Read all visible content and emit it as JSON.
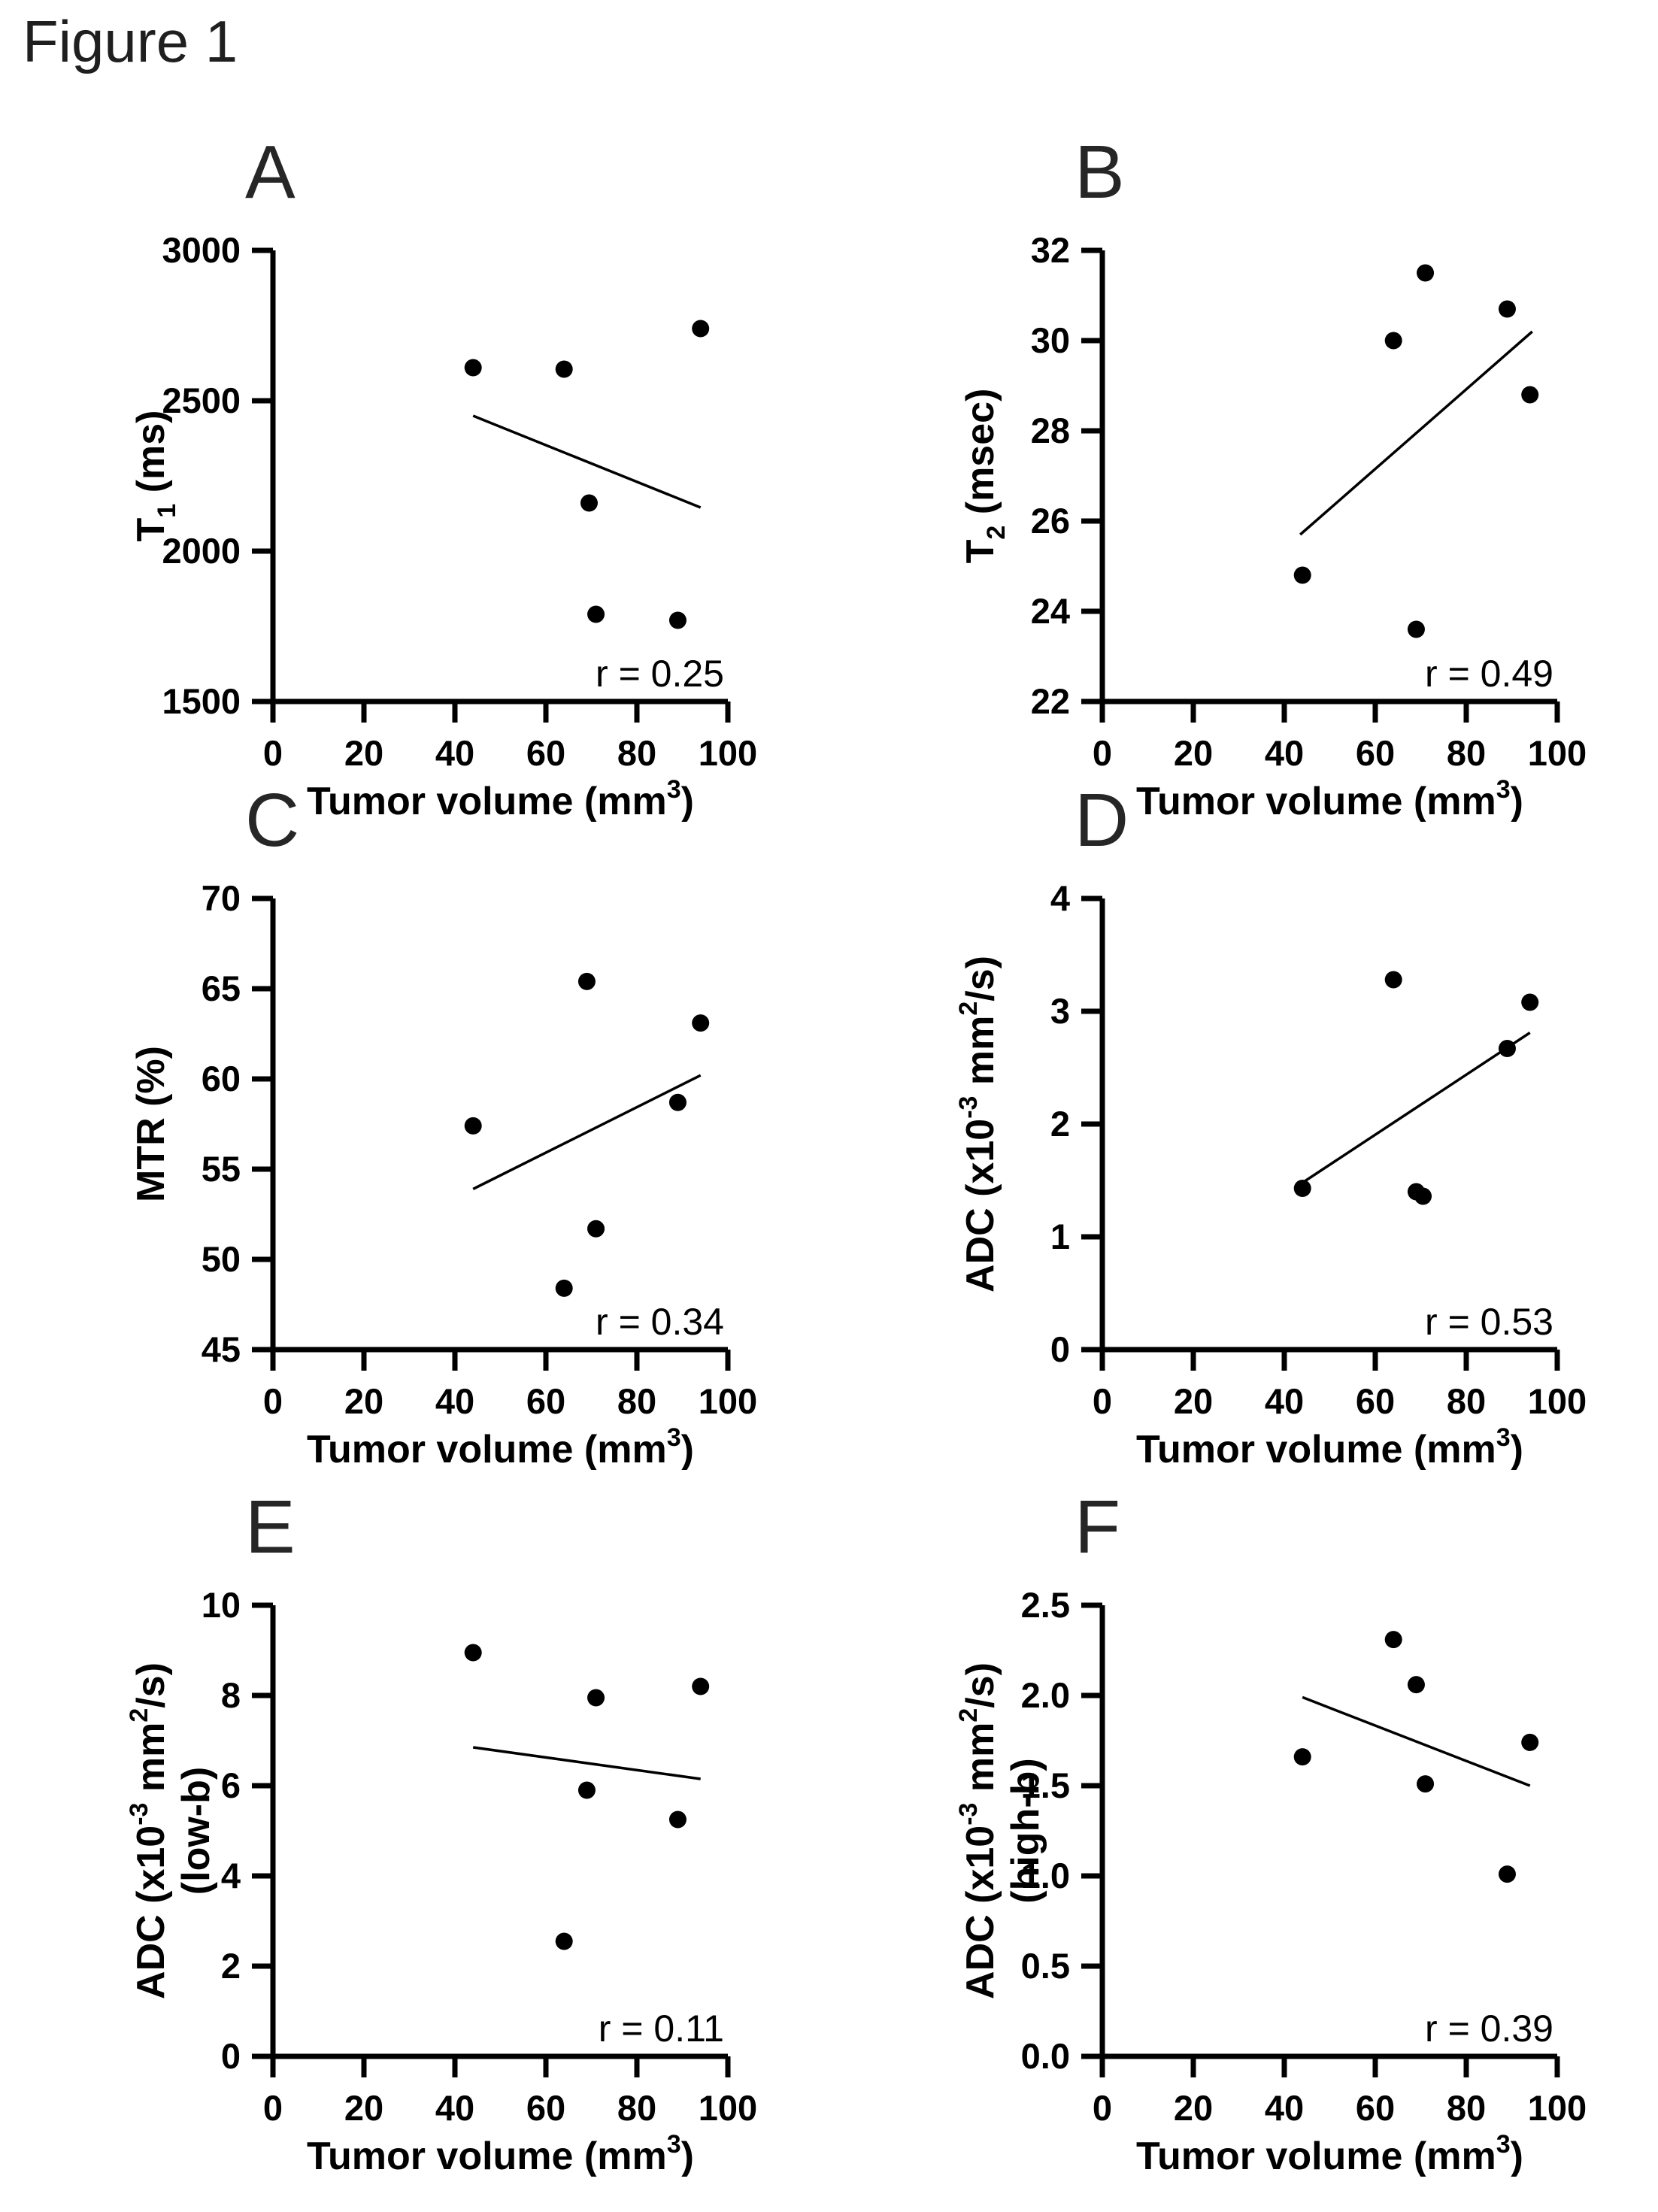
{
  "figure_title": "Figure 1",
  "chart_data": [
    {
      "type": "scatter",
      "panel": "A",
      "title": "",
      "xlabel": "Tumor volume (mm³)",
      "xlabel_rich": [
        {
          "t": "Tumor volume (mm"
        },
        {
          "t": "3",
          "s": "sup"
        },
        {
          "t": ")"
        }
      ],
      "ylabel": "T₁ (ms)",
      "ylabel_rich": [
        {
          "t": "T"
        },
        {
          "t": "1",
          "s": "sub"
        },
        {
          "t": " (ms)"
        }
      ],
      "ylabel_line2_rich": null,
      "xlim": [
        0,
        100
      ],
      "ylim": [
        1500,
        3000
      ],
      "x_ticks": [
        [
          0,
          "0"
        ],
        [
          20,
          "20"
        ],
        [
          40,
          "40"
        ],
        [
          60,
          "60"
        ],
        [
          80,
          "80"
        ],
        [
          100,
          "100"
        ]
      ],
      "y_ticks": [
        [
          1500,
          "1500"
        ],
        [
          2000,
          "2000"
        ],
        [
          2500,
          "2500"
        ],
        [
          3000,
          "3000"
        ]
      ],
      "points": [
        [
          44,
          2610
        ],
        [
          64,
          2605
        ],
        [
          69.5,
          2160
        ],
        [
          71,
          1790
        ],
        [
          89,
          1770
        ],
        [
          94,
          2740
        ]
      ],
      "trend_line": [
        [
          44,
          2450
        ],
        [
          94,
          2145
        ]
      ],
      "r_label": "r = 0.25",
      "grid": false,
      "legend": null
    },
    {
      "type": "scatter",
      "panel": "B",
      "title": "",
      "xlabel": "Tumor volume (mm³)",
      "xlabel_rich": [
        {
          "t": "Tumor volume (mm"
        },
        {
          "t": "3",
          "s": "sup"
        },
        {
          "t": ")"
        }
      ],
      "ylabel": "T₂ (msec)",
      "ylabel_rich": [
        {
          "t": "T"
        },
        {
          "t": "2",
          "s": "sub"
        },
        {
          "t": " (msec)"
        }
      ],
      "ylabel_line2_rich": null,
      "xlim": [
        0,
        100
      ],
      "ylim": [
        22,
        32
      ],
      "x_ticks": [
        [
          0,
          "0"
        ],
        [
          20,
          "20"
        ],
        [
          40,
          "40"
        ],
        [
          60,
          "60"
        ],
        [
          80,
          "80"
        ],
        [
          100,
          "100"
        ]
      ],
      "y_ticks": [
        [
          22,
          "22"
        ],
        [
          24,
          "24"
        ],
        [
          26,
          "26"
        ],
        [
          28,
          "28"
        ],
        [
          30,
          "30"
        ],
        [
          32,
          "32"
        ]
      ],
      "points": [
        [
          44,
          24.8
        ],
        [
          64,
          30.0
        ],
        [
          71,
          31.5
        ],
        [
          69,
          23.6
        ],
        [
          89,
          30.7
        ],
        [
          94,
          28.8
        ]
      ],
      "trend_line": [
        [
          43.5,
          25.7
        ],
        [
          94.5,
          30.2
        ]
      ],
      "r_label": "r = 0.49",
      "grid": false,
      "legend": null
    },
    {
      "type": "scatter",
      "panel": "C",
      "title": "",
      "xlabel": "Tumor volume (mm³)",
      "xlabel_rich": [
        {
          "t": "Tumor volume (mm"
        },
        {
          "t": "3",
          "s": "sup"
        },
        {
          "t": ")"
        }
      ],
      "ylabel": "MTR (%)",
      "ylabel_rich": [
        {
          "t": "MTR (%)"
        }
      ],
      "ylabel_line2_rich": null,
      "xlim": [
        0,
        100
      ],
      "ylim": [
        45,
        70
      ],
      "x_ticks": [
        [
          0,
          "0"
        ],
        [
          20,
          "20"
        ],
        [
          40,
          "40"
        ],
        [
          60,
          "60"
        ],
        [
          80,
          "80"
        ],
        [
          100,
          "100"
        ]
      ],
      "y_ticks": [
        [
          45,
          "45"
        ],
        [
          50,
          "50"
        ],
        [
          55,
          "55"
        ],
        [
          60,
          "60"
        ],
        [
          65,
          "65"
        ],
        [
          70,
          "70"
        ]
      ],
      "points": [
        [
          44,
          57.4
        ],
        [
          64,
          48.4
        ],
        [
          69,
          65.4
        ],
        [
          71,
          51.7
        ],
        [
          89,
          58.7
        ],
        [
          94,
          63.1
        ]
      ],
      "trend_line": [
        [
          44,
          53.9
        ],
        [
          94,
          60.2
        ]
      ],
      "r_label": "r = 0.34",
      "grid": false,
      "legend": null
    },
    {
      "type": "scatter",
      "panel": "D",
      "title": "",
      "xlabel": "Tumor volume (mm³)",
      "xlabel_rich": [
        {
          "t": "Tumor volume (mm"
        },
        {
          "t": "3",
          "s": "sup"
        },
        {
          "t": ")"
        }
      ],
      "ylabel": "ADC (x10⁻³ mm²/s)",
      "ylabel_rich": [
        {
          "t": "ADC (x10"
        },
        {
          "t": "-3",
          "s": "sup"
        },
        {
          "t": " mm"
        },
        {
          "t": "2",
          "s": "sup"
        },
        {
          "t": "/s)"
        }
      ],
      "ylabel_line2_rich": null,
      "xlim": [
        0,
        100
      ],
      "ylim": [
        0,
        4
      ],
      "x_ticks": [
        [
          0,
          "0"
        ],
        [
          20,
          "20"
        ],
        [
          40,
          "40"
        ],
        [
          60,
          "60"
        ],
        [
          80,
          "80"
        ],
        [
          100,
          "100"
        ]
      ],
      "y_ticks": [
        [
          0,
          "0"
        ],
        [
          1,
          "1"
        ],
        [
          2,
          "2"
        ],
        [
          3,
          "3"
        ],
        [
          4,
          "4"
        ]
      ],
      "points": [
        [
          44,
          1.43
        ],
        [
          64,
          3.28
        ],
        [
          69,
          1.4
        ],
        [
          70.5,
          1.36
        ],
        [
          89,
          2.67
        ],
        [
          94,
          3.08
        ]
      ],
      "trend_line": [
        [
          44,
          1.48
        ],
        [
          94,
          2.81
        ]
      ],
      "r_label": "r = 0.53",
      "grid": false,
      "legend": null
    },
    {
      "type": "scatter",
      "panel": "E",
      "title": "",
      "xlabel": "Tumor volume (mm³)",
      "xlabel_rich": [
        {
          "t": "Tumor volume (mm"
        },
        {
          "t": "3",
          "s": "sup"
        },
        {
          "t": ")"
        }
      ],
      "ylabel": "ADC (x10⁻³ mm²/s) (low-b)",
      "ylabel_rich": [
        {
          "t": "ADC (x10"
        },
        {
          "t": "-3",
          "s": "sup"
        },
        {
          "t": " mm"
        },
        {
          "t": "2",
          "s": "sup"
        },
        {
          "t": "/s)"
        }
      ],
      "ylabel_line2_rich": [
        {
          "t": "(low-b)"
        }
      ],
      "xlim": [
        0,
        100
      ],
      "ylim": [
        0,
        10
      ],
      "x_ticks": [
        [
          0,
          "0"
        ],
        [
          20,
          "20"
        ],
        [
          40,
          "40"
        ],
        [
          60,
          "60"
        ],
        [
          80,
          "80"
        ],
        [
          100,
          "100"
        ]
      ],
      "y_ticks": [
        [
          0,
          "0"
        ],
        [
          2,
          "2"
        ],
        [
          4,
          "4"
        ],
        [
          6,
          "6"
        ],
        [
          8,
          "8"
        ],
        [
          10,
          "10"
        ]
      ],
      "points": [
        [
          44,
          8.95
        ],
        [
          64,
          2.55
        ],
        [
          71,
          7.95
        ],
        [
          69,
          5.9
        ],
        [
          89,
          5.25
        ],
        [
          94,
          8.2
        ]
      ],
      "trend_line": [
        [
          44,
          6.85
        ],
        [
          94,
          6.15
        ]
      ],
      "r_label": "r = 0.11",
      "grid": false,
      "legend": null
    },
    {
      "type": "scatter",
      "panel": "F",
      "title": "",
      "xlabel": "Tumor volume (mm³)",
      "xlabel_rich": [
        {
          "t": "Tumor volume (mm"
        },
        {
          "t": "3",
          "s": "sup"
        },
        {
          "t": ")"
        }
      ],
      "ylabel": "ADC (x10⁻³ mm²/s) (high-b)",
      "ylabel_rich": [
        {
          "t": "ADC (x10"
        },
        {
          "t": "-3",
          "s": "sup"
        },
        {
          "t": " mm"
        },
        {
          "t": "2",
          "s": "sup"
        },
        {
          "t": "/s)"
        }
      ],
      "ylabel_line2_rich": [
        {
          "t": "(high-b)"
        }
      ],
      "xlim": [
        0,
        100
      ],
      "ylim": [
        0,
        2.5
      ],
      "x_ticks": [
        [
          0,
          "0"
        ],
        [
          20,
          "20"
        ],
        [
          40,
          "40"
        ],
        [
          60,
          "60"
        ],
        [
          80,
          "80"
        ],
        [
          100,
          "100"
        ]
      ],
      "y_ticks": [
        [
          0,
          "0.0"
        ],
        [
          0.5,
          "0.5"
        ],
        [
          1,
          "1.0"
        ],
        [
          1.5,
          "1.5"
        ],
        [
          2,
          "2.0"
        ],
        [
          2.5,
          "2.5"
        ]
      ],
      "points": [
        [
          44,
          1.66
        ],
        [
          64,
          2.31
        ],
        [
          69,
          2.06
        ],
        [
          71,
          1.51
        ],
        [
          89,
          1.01
        ],
        [
          94,
          1.74
        ]
      ],
      "trend_line": [
        [
          44,
          1.99
        ],
        [
          94,
          1.5
        ]
      ],
      "r_label": "r = 0.39",
      "grid": false,
      "legend": null
    }
  ],
  "style": {
    "marker_color": "#000000",
    "axis_color": "#000000",
    "trend_line_color": "#000000",
    "background_color": "#ffffff",
    "letter_color": "#262626"
  }
}
